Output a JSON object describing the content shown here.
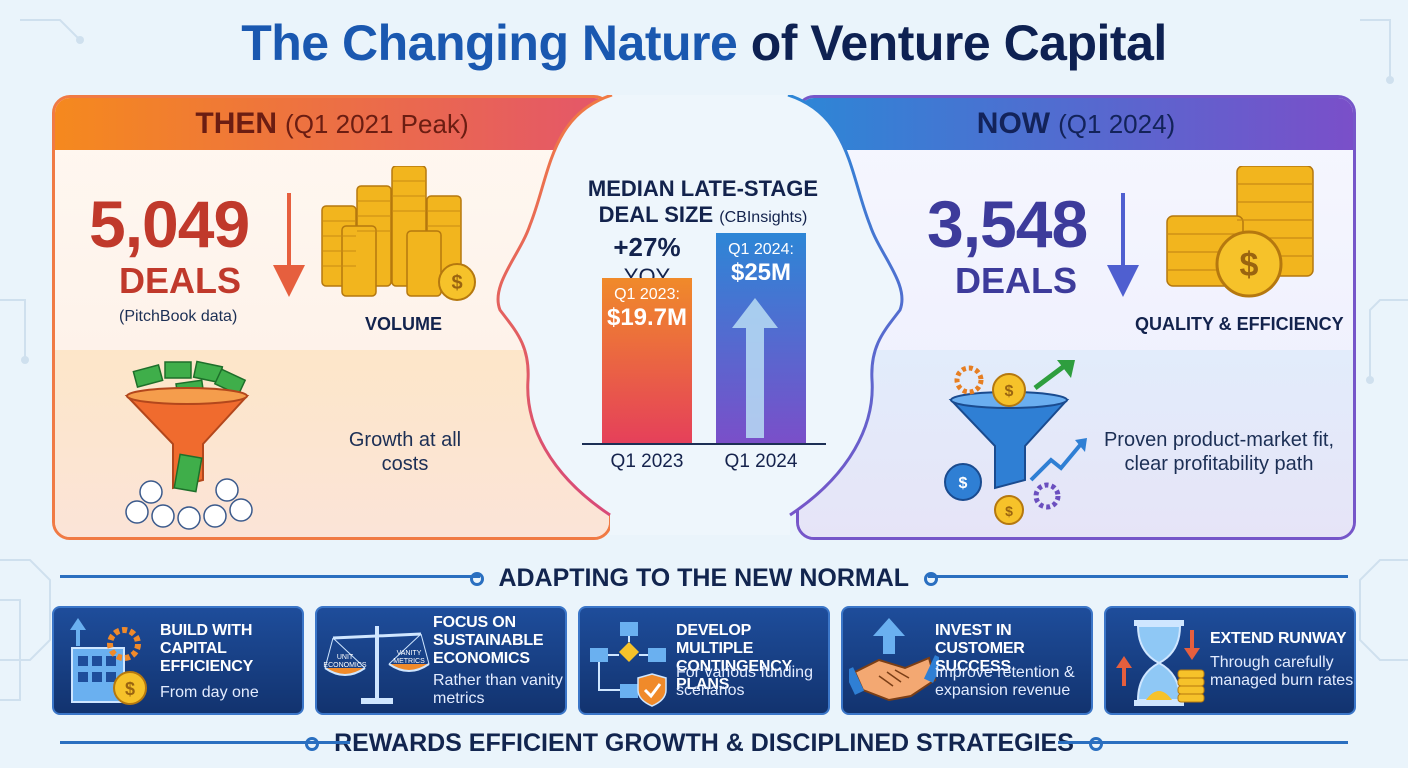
{
  "title": {
    "part1": "The Changing Nature",
    "part2": "of Venture Capital"
  },
  "then": {
    "header": "THEN",
    "header_sub": "(Q1 2021 Peak)",
    "number": "5,049",
    "deals_label": "DEALS",
    "source": "(PitchBook data)",
    "volume_label": "VOLUME",
    "desc": "Growth at all costs",
    "accent": "#c0392b"
  },
  "now": {
    "header": "NOW",
    "header_sub": "(Q1 2024)",
    "number": "3,548",
    "deals_label": "DEALS",
    "quality_label": "QUALITY & EFFICIENCY",
    "desc": "Proven product-market fit, clear profitability path",
    "accent": "#3d3b9b"
  },
  "center": {
    "title": "MEDIAN LATE-STAGE DEAL SIZE",
    "source": "(CBInsights)",
    "yoy_value": "+27%",
    "yoy_label": "YOY"
  },
  "chart_data": {
    "type": "bar",
    "title": "MEDIAN LATE-STAGE DEAL SIZE (CBInsights)",
    "categories": [
      "Q1 2023",
      "Q1 2024"
    ],
    "values": [
      19.7,
      25
    ],
    "bar_labels": [
      {
        "label": "Q1 2023:",
        "value": "$19.7M"
      },
      {
        "label": "Q1 2024:",
        "value": "$25M"
      }
    ],
    "colors": [
      "#f0612e",
      "#4a5fcf"
    ],
    "annotation": "+27% YOY",
    "ylim": [
      0,
      25
    ]
  },
  "adapting": {
    "title": "ADAPTING TO THE NEW NORMAL",
    "cards": [
      {
        "title": "BUILD WITH CAPITAL EFFICIENCY",
        "sub": "From day one",
        "icon": "building-gear-coin-icon"
      },
      {
        "title": "FOCUS ON SUSTAINABLE ECONOMICS",
        "sub": "Rather than vanity metrics",
        "icon": "balance-scale-icon",
        "scale_left": "UNIT ECONOMICS",
        "scale_right": "VANITY METRICS"
      },
      {
        "title": "DEVELOP MULTIPLE CONTINGENCY PLANS",
        "sub": "For various funding scenarios",
        "icon": "flowchart-shield-icon"
      },
      {
        "title": "INVEST IN CUSTOMER SUCCESS",
        "sub": "Improve retention & expansion revenue",
        "icon": "handshake-icon"
      },
      {
        "title": "EXTEND RUNWAY",
        "sub": "Through carefully managed burn rates",
        "icon": "hourglass-coins-icon"
      }
    ]
  },
  "footer": "REWARDS EFFICIENT GROWTH & DISCIPLINED  STRATEGIES"
}
